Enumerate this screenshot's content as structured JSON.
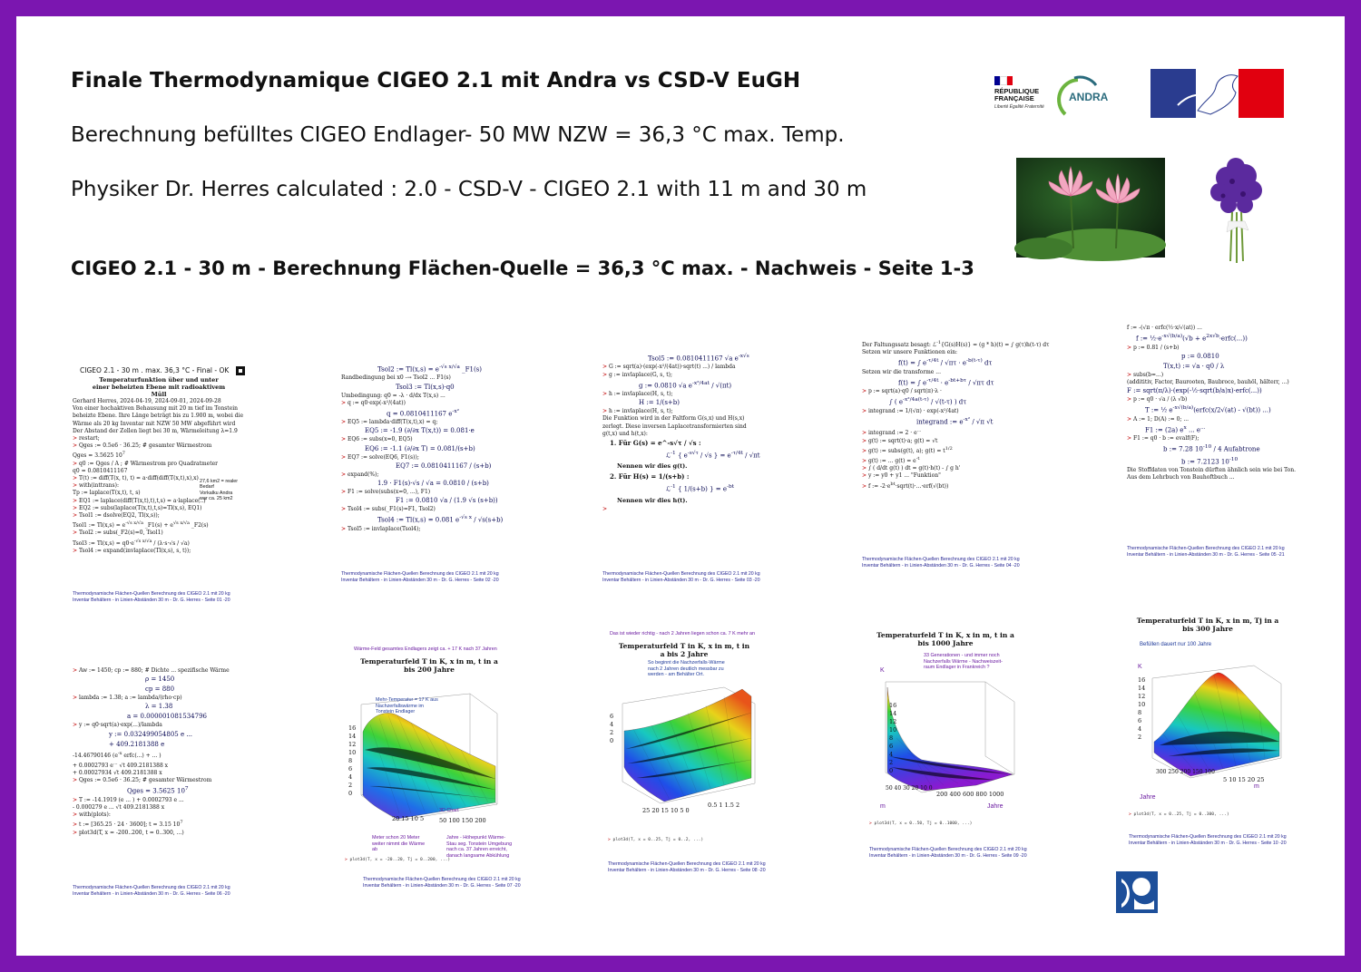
{
  "header": {
    "title": "Finale Thermodynamique CIGEO 2.1 mit Andra vs CSD-V EuGH",
    "line1": "Berechnung befülltes CIGEO Endlager- 50 MW NZW = 36,3 °C max. Temp.",
    "line2": "Physiker Dr. Herres calculated : 2.0 - CSD-V - CIGEO 2.1 with  11 m and 30 m",
    "subtitle": "CIGEO 2.1 - 30 m - Berechnung Flächen-Quelle = 36,3 °C max. - Nachweis - Seite 1-3"
  },
  "logos": {
    "republique": "RÉPUBLIQUE FRANÇAISE",
    "republique_motto": "Liberté Égalité Fraternité",
    "andra": "ANDRA",
    "flag_colors": [
      "#000091",
      "#ffffff",
      "#e1000f"
    ]
  },
  "pages": {
    "p1": {
      "title": "CIGEO 2.1 - 30 m . max. 36,3 °C - Final - OK",
      "heading": "Temperaturfunktion über und unter einer beheizten Ebene mit radioaktivem Müll",
      "note": "27,6 km2 = realer Bedarf",
      "note2": "Vorkalku Andra",
      "note3": "war ca. 25 km2",
      "footer1": "Thermodynamische Flächen-Quellen Berechnung des CIGEO 2.1 mit 20 kg",
      "footer2": "Inventar Behältern - in Linien-Abständen 30 m - Dr. G. Herres - Seite 01 -20"
    },
    "p2": {
      "footer1": "Thermodynamische Flächen-Quellen Berechnung des CIGEO 2.1 mit 20 kg",
      "footer2": "Inventar Behältern - in Linien-Abständen 30 m - Dr. G. Herres - Seite 02 -20"
    },
    "p3": {
      "line1": "1.  Für G(s) = e^-s√τ / √s :",
      "line2": "Nennen wir dies g(t).",
      "line3": "2.  Für H(s) = 1/(s+b) :",
      "line4": "Nennen wir dies h(t).",
      "footer1": "Thermodynamische Flächen-Quellen Berechnung des CIGEO 2.1 mit 20 kg",
      "footer2": "Inventar Behältern - in Linien-Abständen 30 m - Dr. G. Herres - Seite 03 -20"
    },
    "p4": {
      "footer1": "Thermodynamische Flächen-Quellen Berechnung des CIGEO 2.1 mit 20 kg",
      "footer2": "Inventar Behältern - in Linien-Abständen 30 m - Dr. G. Herres - Seite 04 -20"
    },
    "p5": {
      "footer1": "Thermodynamische Flächen-Quellen Berechnung des CIGEO 2.1 mit 20 kg",
      "footer2": "Inventar Behältern - in Linien-Abständen 30 m - Dr. G. Herres - Seite 05 -21"
    },
    "p6": {
      "footer1": "Thermodynamische Flächen-Quellen Berechnung des CIGEO 2.1 mit 20 kg",
      "footer2": "Inventar Behältern - in Linien-Abständen 30 m - Dr. G. Herres - Seite 06 -20"
    },
    "p7": {
      "top_caption": "Wärme-Feld gesamtes  Endlagers zeigt ca. + 17 K nach 37 Jahren",
      "title": "Temperaturfeld T in K, x in m, t in a bis 200 Jahre",
      "note1": "Mehr-Temperatur = 17 K aus Nachzerfallswärme im Tonstein Endlager",
      "note2": "3D Chart",
      "note3": "Meter schon 20 Meter weiter nimmt die Wärme ab",
      "note4": "Jahre - Höhepunkt Wärme-Stau seg. Tonstein Umgebung nach ca. 37 Jahren erreicht, danach langsame Abkühlung",
      "footer1": "Thermodynamische Flächen-Quellen Berechnung des CIGEO 2.1 mit 20 kg",
      "footer2": "Inventar Behältern - in Linien-Abständen 30 m - Dr. G. Herres - Seite 07 -20"
    },
    "p8": {
      "top_caption": "Das ist wieder richtig - nach 2 Jahren liegen schon ca. 7 K mehr an",
      "title": "Temperaturfeld T in K, x in m, t in a bis 2 Jahre",
      "note1": "So beginnt die Nachzerfalls-Wärme nach 2 Jahren deutlich messbar zu werden - am Behälter Ort.",
      "footer1": "Thermodynamische Flächen-Quellen Berechnung des CIGEO 2.1 mit 20 kg",
      "footer2": "Inventar Behältern - in Linien-Abständen 30 m - Dr. G. Herres - Seite 08 -20"
    },
    "p9": {
      "title": "Temperaturfeld T in K, x in m, t in a bis 1000 Jahre",
      "note1": "33 Generationen - und immer noch Nachzerfalls Wärme - Nachweiszeit- raum Endlager in Frankreich ?",
      "axis_k": "K",
      "axis_m": "m",
      "axis_jahre": "Jahre",
      "footer1": "Thermodynamische Flächen-Quellen Berechnung des CIGEO 2.1 mit 20 kg",
      "footer2": "Inventar Behältern - in Linien-Abständen 30 m - Dr. G. Herres - Seite 09 -20"
    },
    "p10": {
      "title": "Temperaturfeld T in K, x in m, Tj in a bis 300 Jahre",
      "note1": "Befüllen dauert nur 100 Jahre",
      "axis_k": "K",
      "axis_m": "m",
      "axis_jahre": "Jahre",
      "footer1": "Thermodynamische Flächen-Quellen Berechnung des CIGEO 2.1 mit 20 kg",
      "footer2": "Inventar Behältern - in Linien-Abständen 30 m - Dr. G. Herres - Seite 10 -20"
    }
  },
  "colors": {
    "background": "#7b16b0",
    "accent_blue": "#1f1f8f",
    "accent_purple": "#6a1aa0"
  }
}
